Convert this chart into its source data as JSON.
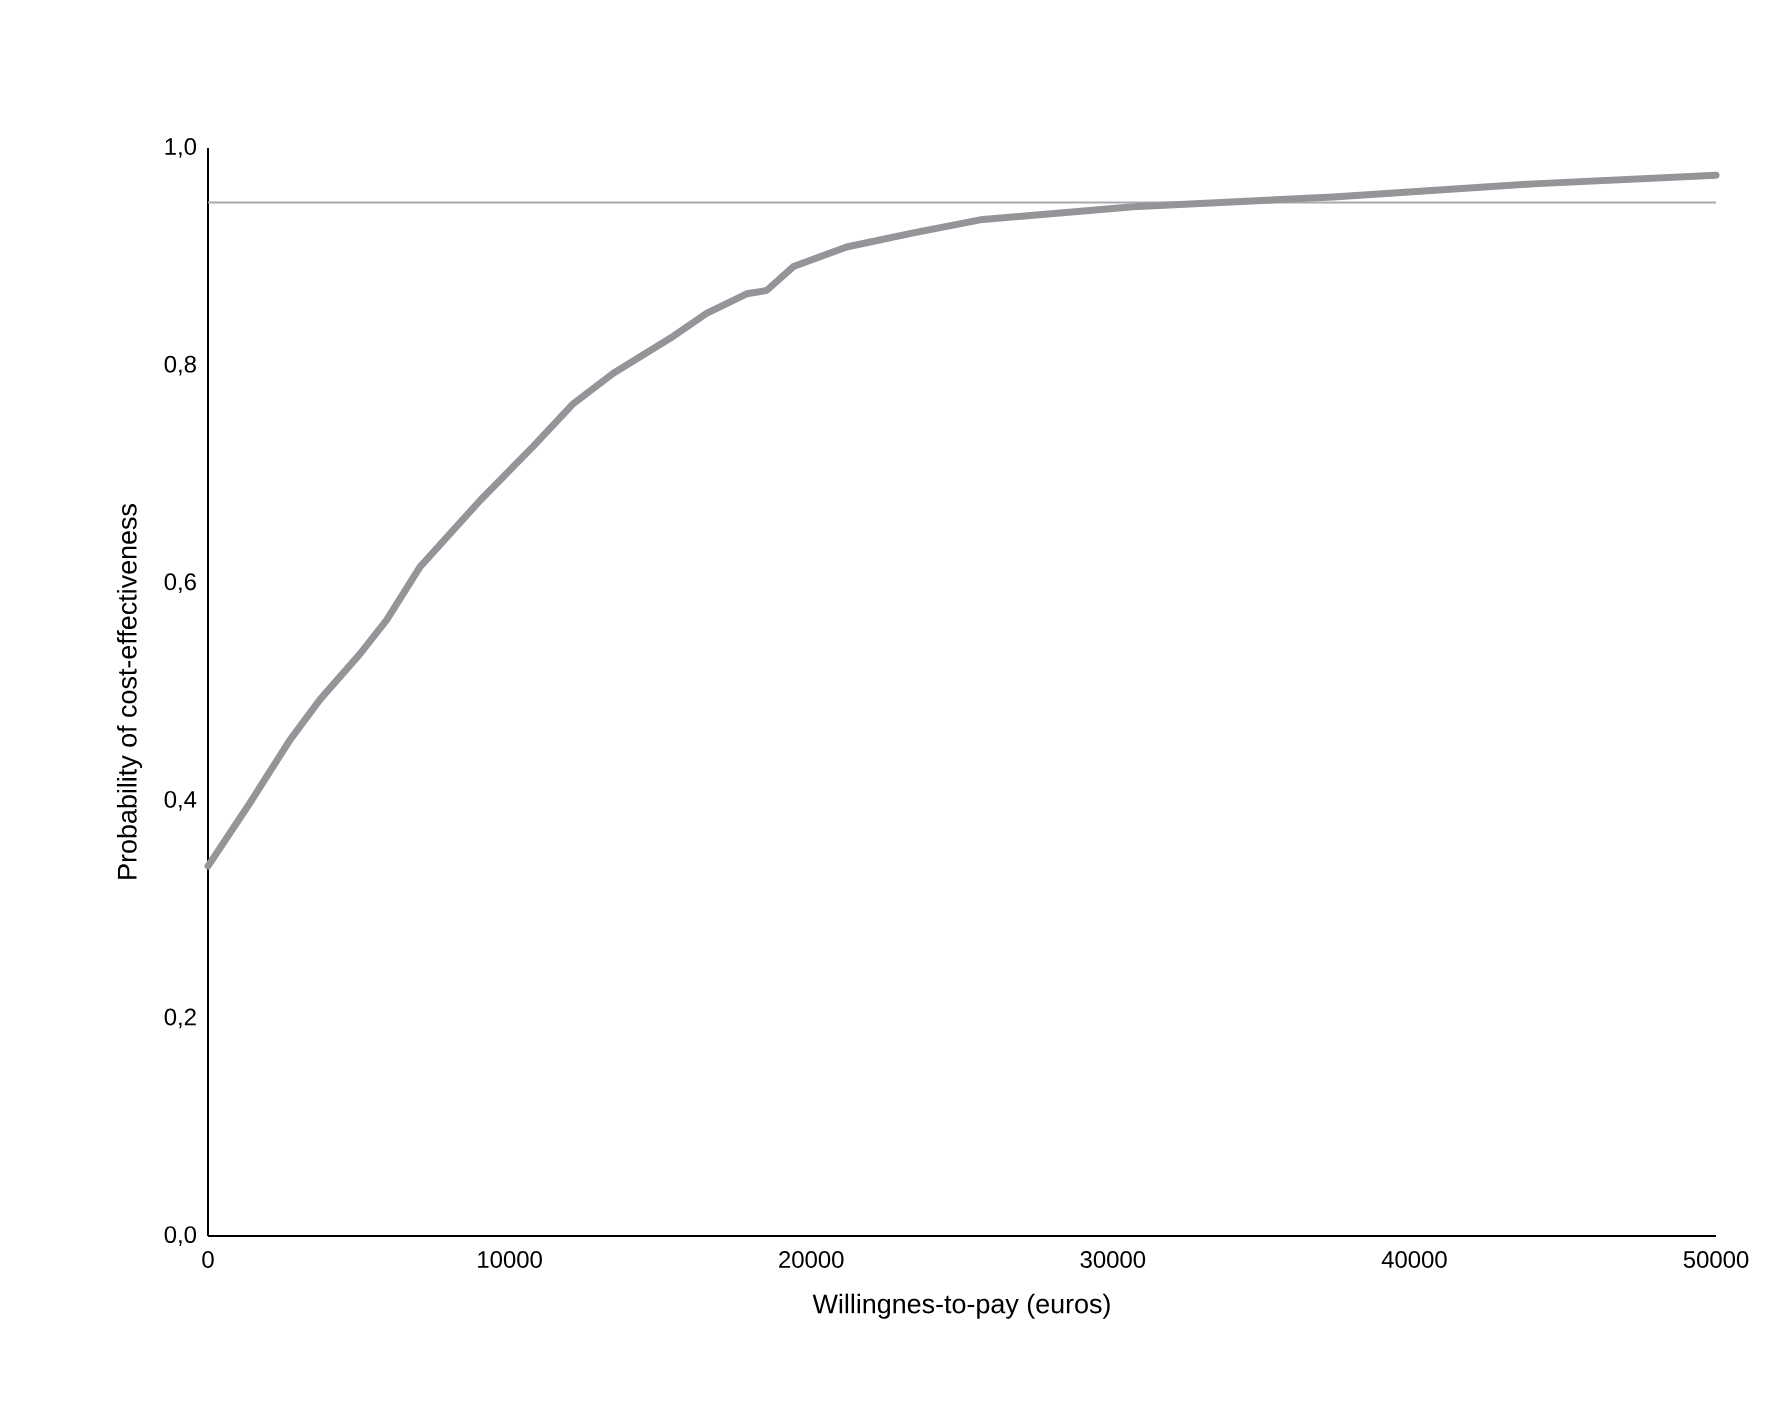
{
  "chart_data": {
    "type": "line",
    "xlabel": "Willingnes-to-pay (euros)",
    "ylabel": "Probability of cost-effectiveness",
    "x": [
      0,
      1390,
      2720,
      3710,
      5040,
      5920,
      7030,
      9020,
      10790,
      12110,
      13440,
      15430,
      16530,
      17860,
      18520,
      19410,
      21170,
      23390,
      25600,
      30680,
      37310,
      43940,
      50000
    ],
    "series": [
      {
        "color": "#939598",
        "values": [
          0.34,
          0.398,
          0.456,
          0.493,
          0.535,
          0.566,
          0.615,
          0.676,
          0.726,
          0.765,
          0.793,
          0.827,
          0.848,
          0.866,
          0.869,
          0.891,
          0.909,
          0.922,
          0.934,
          0.946,
          0.955,
          0.967,
          0.975
        ]
      }
    ],
    "xlim": [
      0,
      50000
    ],
    "ylim": [
      0,
      1
    ],
    "xticks": [
      0,
      10000,
      20000,
      30000,
      40000,
      50000
    ],
    "yticks": [
      {
        "value": 0,
        "label": "0,0"
      },
      {
        "value": 0.2,
        "label": "0,2"
      },
      {
        "value": 0.4,
        "label": "0,4"
      },
      {
        "value": 0.6,
        "label": "0,6"
      },
      {
        "value": 0.8,
        "label": "0,8"
      },
      {
        "value": 1,
        "label": "1,0"
      }
    ],
    "ref_lines": [
      {
        "axis": "y",
        "value": 0.95,
        "color": "#a7a9ac"
      }
    ],
    "grid": false,
    "legend": false,
    "marker": "none",
    "line_style": "solid"
  }
}
